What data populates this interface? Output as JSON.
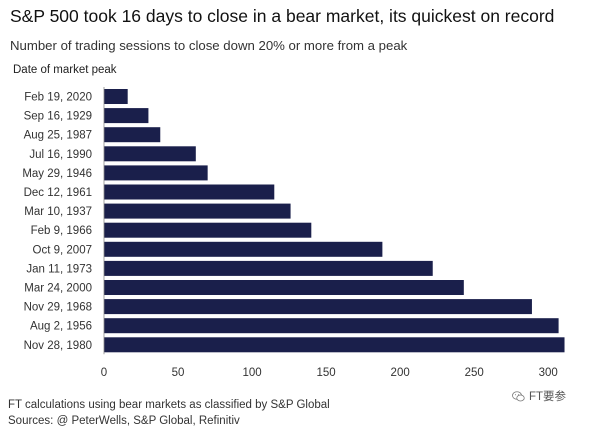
{
  "header": {
    "title": "S&P 500 took 16 days to close in a bear market, its quickest on record",
    "subtitle": "Number of trading sessions to close down 20% or more from a peak",
    "axis_caption": "Date of market peak"
  },
  "footer": {
    "note": "FT calculations using bear markets as classified by S&P Global",
    "sources": "Sources: @ PeterWells, S&P Global, Refinitiv"
  },
  "watermark": {
    "text": "FT要参",
    "icon": "wechat-icon"
  },
  "colors": {
    "bar": "#1a1f4b",
    "axis": "#888888",
    "tick_text": "#333333"
  },
  "chart_data": {
    "type": "bar",
    "orientation": "horizontal",
    "categories": [
      "Feb 19, 2020",
      "Sep 16, 1929",
      "Aug 25, 1987",
      "Jul 16, 1990",
      "May 29, 1946",
      "Dec 12, 1961",
      "Mar 10, 1937",
      "Feb 9, 1966",
      "Oct 9, 2007",
      "Jan 11, 1973",
      "Mar 24, 2000",
      "Nov 29, 1968",
      "Aug 2, 1956",
      "Nov 28, 1980"
    ],
    "values": [
      16,
      30,
      38,
      62,
      70,
      115,
      126,
      140,
      188,
      222,
      243,
      289,
      307,
      311
    ],
    "xlim": [
      0,
      312
    ],
    "xticks": [
      0,
      50,
      100,
      150,
      200,
      250,
      300
    ],
    "grid": false
  }
}
